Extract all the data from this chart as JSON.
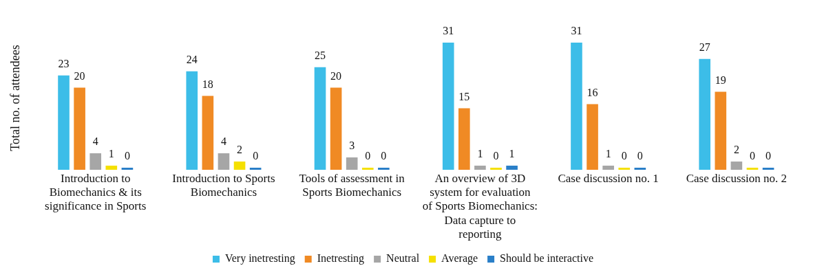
{
  "chart_data": {
    "type": "bar",
    "ylabel": "Total no. of attendees",
    "categories": [
      "Introduction to Biomechanics & its significance in Sports",
      "Introduction to Sports Biomechanics",
      "Tools of assessment in Sports Biomechanics",
      "An overview of 3D system for evaluation of Sports Biomechanics: Data capture to reporting",
      "Case discussion no. 1",
      "Case discussion no. 2"
    ],
    "series": [
      {
        "name": "Very inetresting",
        "color": "#3cbde8",
        "values": [
          23,
          24,
          25,
          31,
          31,
          27
        ]
      },
      {
        "name": "Inetresting",
        "color": "#f08a24",
        "values": [
          20,
          18,
          20,
          15,
          16,
          19
        ]
      },
      {
        "name": "Neutral",
        "color": "#a6a6a6",
        "values": [
          4,
          4,
          3,
          1,
          1,
          2
        ]
      },
      {
        "name": "Average",
        "color": "#f5e000",
        "values": [
          1,
          2,
          0,
          0,
          0,
          0
        ]
      },
      {
        "name": "Should be interactive",
        "color": "#2a7fc8",
        "values": [
          0,
          0,
          0,
          1,
          0,
          0
        ]
      }
    ],
    "data_labels": true,
    "legend": "bottom",
    "grid": false
  }
}
